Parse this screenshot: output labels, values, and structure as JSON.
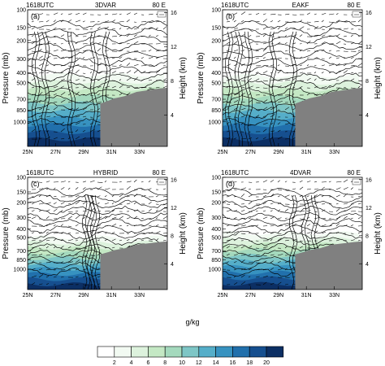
{
  "figure": {
    "colorbar": {
      "label": "g/kg",
      "ticks": [
        "2",
        "4",
        "6",
        "8",
        "10",
        "12",
        "14",
        "16",
        "18",
        "20"
      ],
      "colors": [
        "#ffffff",
        "#f2faf2",
        "#ddf2dd",
        "#c4e8c4",
        "#a4d9bd",
        "#7ec6c6",
        "#55aec9",
        "#3792c0",
        "#2170ac",
        "#164f8f",
        "#0c2f64"
      ]
    }
  },
  "chart_data": [
    {
      "type": "contour",
      "panel_label": "(a)",
      "time_label": "1618UTC",
      "experiment": "3DVAR",
      "longitude_label": "80 E",
      "ylabel": "Pressure (mb)",
      "y2label": "Height (km)",
      "xticks": [
        "25N",
        "27N",
        "29N",
        "31N",
        "33N"
      ],
      "yticks": [
        "100",
        "150",
        "200",
        "300",
        "400",
        "500",
        "700",
        "850",
        "1000"
      ],
      "y2ticks": [
        "16",
        "12",
        "8",
        "4"
      ],
      "ylim": [
        1000,
        100
      ],
      "xlim": [
        "25N",
        "35N"
      ],
      "moist_top_mb": 420,
      "terrain_start": "29.5N"
    },
    {
      "type": "contour",
      "panel_label": "(b)",
      "time_label": "1618UTC",
      "experiment": "EAKF",
      "longitude_label": "80 E",
      "ylabel": "Pressure (mb)",
      "y2label": "Height (km)",
      "xticks": [
        "25N",
        "27N",
        "29N",
        "31N",
        "33N"
      ],
      "yticks": [
        "100",
        "150",
        "200",
        "300",
        "400",
        "500",
        "700",
        "850",
        "1000"
      ],
      "y2ticks": [
        "16",
        "12",
        "8",
        "4"
      ],
      "ylim": [
        1000,
        100
      ],
      "xlim": [
        "25N",
        "35N"
      ],
      "moist_top_mb": 430,
      "terrain_start": "29.5N"
    },
    {
      "type": "contour",
      "panel_label": "(c)",
      "time_label": "1618UTC",
      "experiment": "HYBRID",
      "longitude_label": "80 E",
      "ylabel": "Pressure (mb)",
      "y2label": "Height (km)",
      "xticks": [
        "25N",
        "27N",
        "29N",
        "31N",
        "33N"
      ],
      "yticks": [
        "100",
        "150",
        "200",
        "300",
        "400",
        "500",
        "700",
        "850",
        "1000"
      ],
      "y2ticks": [
        "16",
        "12",
        "8",
        "4"
      ],
      "ylim": [
        1000,
        100
      ],
      "xlim": [
        "25N",
        "35N"
      ],
      "moist_top_mb": 500,
      "terrain_start": "29.5N"
    },
    {
      "type": "contour",
      "panel_label": "(d)",
      "time_label": "1618UTC",
      "experiment": "4DVAR",
      "longitude_label": "80 E",
      "ylabel": "Pressure (mb)",
      "y2label": "Height (km)",
      "xticks": [
        "25N",
        "27N",
        "29N",
        "31N",
        "33N"
      ],
      "yticks": [
        "100",
        "150",
        "200",
        "300",
        "400",
        "500",
        "700",
        "850",
        "1000"
      ],
      "y2ticks": [
        "16",
        "12",
        "8",
        "4"
      ],
      "ylim": [
        1000,
        100
      ],
      "xlim": [
        "25N",
        "35N"
      ],
      "moist_top_mb": 450,
      "terrain_start": "29.5N"
    }
  ]
}
